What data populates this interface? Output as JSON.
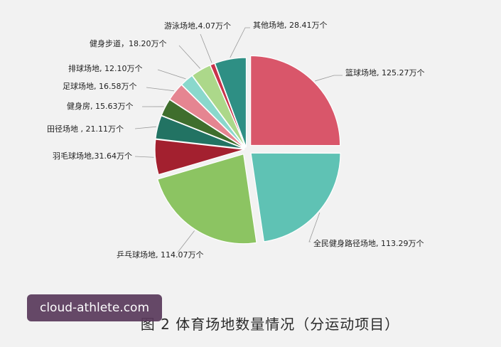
{
  "chart_data": {
    "type": "pie",
    "title": "图 2  体育场地数量情况（分运动项目）",
    "unit": "万个",
    "slices": [
      {
        "name": "篮球场地",
        "value": 125.27,
        "label": "篮球场地, 125.27万个",
        "color": "#d9566a"
      },
      {
        "name": "全民健身路径场地",
        "value": 113.29,
        "label": "全民健身路径场地, 113.29万个",
        "color": "#5fc2b4"
      },
      {
        "name": "乒乓球场地",
        "value": 114.07,
        "label": "乒乓球场地, 114.07万个",
        "color": "#8cc462"
      },
      {
        "name": "羽毛球场地",
        "value": 31.64,
        "label": "羽毛球场地,31.64万个",
        "color": "#a3202f"
      },
      {
        "name": "田径场地",
        "value": 21.11,
        "label": "田径场地 , 21.11万个",
        "color": "#227363"
      },
      {
        "name": "健身房",
        "value": 15.63,
        "label": "健身房, 15.63万个",
        "color": "#3f6e2d"
      },
      {
        "name": "足球场地",
        "value": 16.58,
        "label": "足球场地, 16.58万个",
        "color": "#e58591"
      },
      {
        "name": "排球场地",
        "value": 12.1,
        "label": "排球场地, 12.10万个",
        "color": "#8ad8cc"
      },
      {
        "name": "健身步道",
        "value": 18.2,
        "label": "健身步道，18.20万个",
        "color": "#acd88a"
      },
      {
        "name": "游泳场地",
        "value": 4.07,
        "label": "游泳场地,4.07万个",
        "color": "#c8324a"
      },
      {
        "name": "其他场地",
        "value": 28.41,
        "label": "其他场地, 28.41万个",
        "color": "#2e8f84"
      }
    ]
  },
  "caption": "图 2  体育场地数量情况（分运动项目）",
  "watermark": "cloud-athlete.com"
}
